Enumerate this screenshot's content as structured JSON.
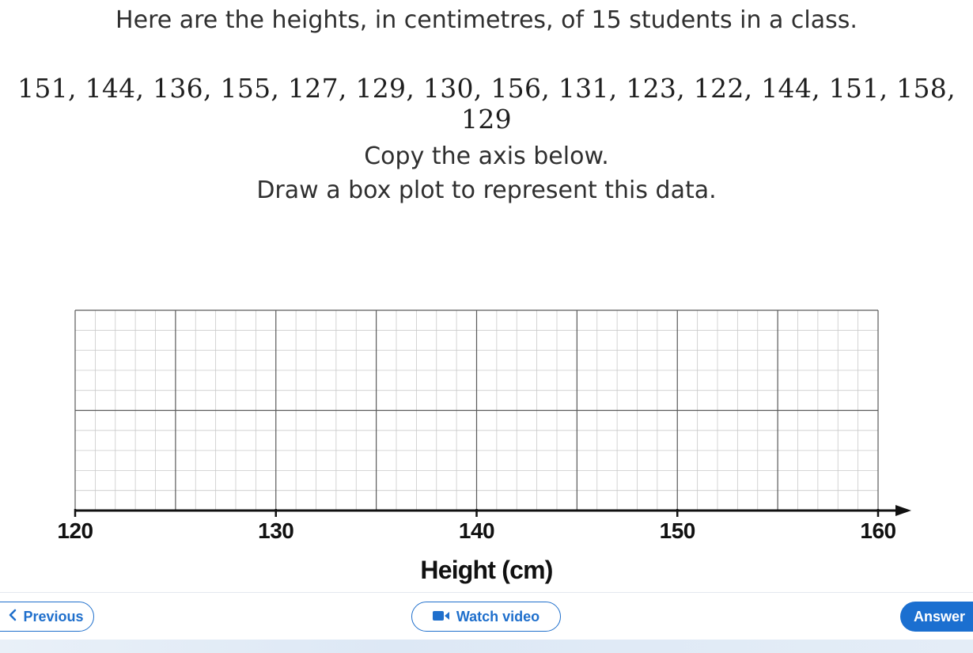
{
  "question": {
    "intro": "Here are the heights, in centimetres, of 15 students in a class.",
    "values_text": "151, 144, 136, 155, 127, 129, 130, 156, 131, 123, 122, 144, 151, 158, 129",
    "instruction_1": "Copy the axis below.",
    "instruction_2": "Draw a box plot to represent this data."
  },
  "axis": {
    "min": 120,
    "max": 160,
    "tick_labels": [
      "120",
      "130",
      "140",
      "150",
      "160"
    ],
    "title": "Height (cm)"
  },
  "nav": {
    "previous_label": "Previous",
    "watch_label": "Watch video",
    "answer_label": "Answer"
  },
  "colors": {
    "accent": "#1b6fd0",
    "grid_minor": "#c9c9c9",
    "grid_major": "#5a5a5a"
  },
  "icons": {
    "previous": "chevron-left-icon",
    "watch": "video-camera-icon"
  }
}
